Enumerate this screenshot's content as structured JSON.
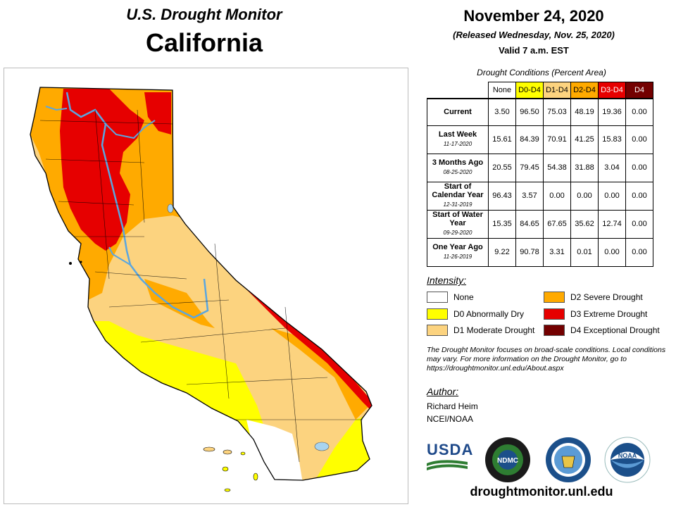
{
  "header": {
    "title": "U.S. Drought Monitor",
    "state": "California",
    "date": "November 24, 2020",
    "released": "(Released Wednesday, Nov. 25, 2020)",
    "valid": "Valid 7 a.m. EST"
  },
  "table": {
    "caption": "Drought Conditions (Percent Area)",
    "columns": [
      "None",
      "D0-D4",
      "D1-D4",
      "D2-D4",
      "D3-D4",
      "D4"
    ],
    "column_colors": [
      "#ffffff",
      "#ffff00",
      "#fcd37f",
      "#ffaa00",
      "#e60000",
      "#730000"
    ],
    "rows": [
      {
        "label": "Current",
        "sub": "",
        "values": [
          "3.50",
          "96.50",
          "75.03",
          "48.19",
          "19.36",
          "0.00"
        ]
      },
      {
        "label": "Last Week",
        "sub": "11-17-2020",
        "values": [
          "15.61",
          "84.39",
          "70.91",
          "41.25",
          "15.83",
          "0.00"
        ]
      },
      {
        "label": "3 Months Ago",
        "sub": "08-25-2020",
        "values": [
          "20.55",
          "79.45",
          "54.38",
          "31.88",
          "3.04",
          "0.00"
        ]
      },
      {
        "label": "Start of Calendar Year",
        "sub": "12-31-2019",
        "values": [
          "96.43",
          "3.57",
          "0.00",
          "0.00",
          "0.00",
          "0.00"
        ]
      },
      {
        "label": "Start of Water Year",
        "sub": "09-29-2020",
        "values": [
          "15.35",
          "84.65",
          "67.65",
          "35.62",
          "12.74",
          "0.00"
        ]
      },
      {
        "label": "One Year Ago",
        "sub": "11-26-2019",
        "values": [
          "9.22",
          "90.78",
          "3.31",
          "0.01",
          "0.00",
          "0.00"
        ]
      }
    ]
  },
  "legend": {
    "title": "Intensity:",
    "items": [
      {
        "label": "None",
        "color": "#ffffff"
      },
      {
        "label": "D0 Abnormally Dry",
        "color": "#ffff00"
      },
      {
        "label": "D1 Moderate Drought",
        "color": "#fcd37f"
      },
      {
        "label": "D2 Severe Drought",
        "color": "#ffaa00"
      },
      {
        "label": "D3 Extreme Drought",
        "color": "#e60000"
      },
      {
        "label": "D4 Exceptional Drought",
        "color": "#730000"
      }
    ]
  },
  "note": "The Drought Monitor focuses on broad-scale conditions. Local conditions may vary. For more information on the Drought Monitor, go to https://droughtmonitor.unl.edu/About.aspx",
  "author": {
    "title": "Author:",
    "name": "Richard Heim",
    "org": "NCEI/NOAA"
  },
  "logos": {
    "usda": "USDA",
    "ndmc": "NDMC",
    "noaa": "NOAA"
  },
  "url": "droughtmonitor.unl.edu",
  "map_colors": {
    "none": "#ffffff",
    "d0": "#ffff00",
    "d1": "#fcd37f",
    "d2": "#ffaa00",
    "d3": "#e60000",
    "water": "#5aa6e0",
    "lake": "#a8d4f0",
    "border": "#000000"
  }
}
